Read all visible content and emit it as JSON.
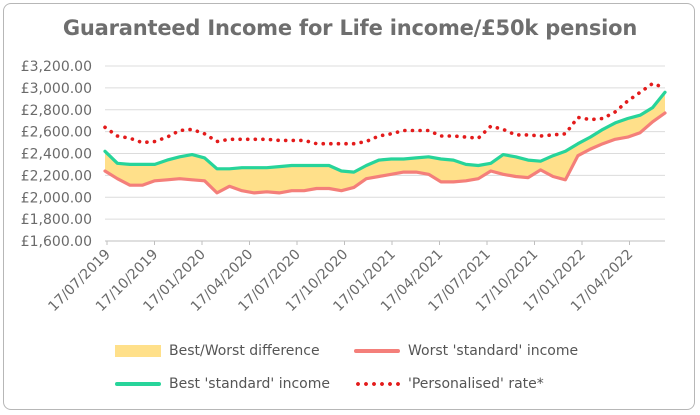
{
  "chart_data": {
    "type": "line",
    "title": "Guaranteed Income for Life income/£50k pension",
    "xlabel": "",
    "ylabel": "",
    "ylim": [
      1600,
      3200
    ],
    "yticks": [
      "£1,600.00",
      "£1,800.00",
      "£2,000.00",
      "£2,200.00",
      "£2,400.00",
      "£2,600.00",
      "£2,800.00",
      "£3,000.00",
      "£3,200.00"
    ],
    "xticks": [
      "17/07/2019",
      "17/10/2019",
      "17/01/2020",
      "17/04/2020",
      "17/07/2020",
      "17/10/2020",
      "17/01/2021",
      "17/04/2021",
      "17/07/2021",
      "17/10/2021",
      "17/01/2022",
      "17/04/2022"
    ],
    "x_index": [
      0,
      1,
      2,
      3,
      4,
      5,
      6,
      7,
      8,
      9,
      10,
      11,
      12,
      13,
      14,
      15,
      16,
      17,
      18,
      19,
      20,
      21,
      22,
      23,
      24,
      25,
      26,
      27,
      28,
      29,
      30,
      31,
      32,
      33,
      34,
      35,
      36,
      37,
      38,
      39,
      40,
      41,
      42,
      43,
      44,
      45
    ],
    "series": [
      {
        "name": "Best 'standard' income",
        "style": "solid",
        "color": "#27d49a",
        "values": [
          2420,
          2310,
          2300,
          2300,
          2300,
          2340,
          2370,
          2390,
          2360,
          2260,
          2260,
          2270,
          2270,
          2270,
          2280,
          2290,
          2290,
          2290,
          2290,
          2240,
          2230,
          2290,
          2340,
          2350,
          2350,
          2360,
          2370,
          2350,
          2340,
          2300,
          2290,
          2310,
          2390,
          2370,
          2340,
          2330,
          2380,
          2420,
          2490,
          2550,
          2620,
          2680,
          2720,
          2750,
          2820,
          2960
        ]
      },
      {
        "name": "Worst 'standard' income",
        "style": "solid",
        "color": "#f47f7a",
        "values": [
          2240,
          2170,
          2110,
          2110,
          2150,
          2160,
          2170,
          2160,
          2150,
          2040,
          2100,
          2060,
          2040,
          2050,
          2040,
          2060,
          2060,
          2080,
          2080,
          2060,
          2090,
          2170,
          2190,
          2210,
          2230,
          2230,
          2210,
          2140,
          2140,
          2150,
          2170,
          2240,
          2210,
          2190,
          2180,
          2250,
          2190,
          2160,
          2380,
          2440,
          2490,
          2530,
          2550,
          2590,
          2690,
          2770
        ]
      },
      {
        "name": "'Personalised' rate*",
        "style": "dotted",
        "color": "#e31b1b",
        "values": [
          2640,
          2560,
          2540,
          2500,
          2510,
          2550,
          2610,
          2620,
          2580,
          2510,
          2530,
          2530,
          2530,
          2530,
          2520,
          2520,
          2520,
          2490,
          2490,
          2490,
          2490,
          2510,
          2560,
          2580,
          2610,
          2610,
          2610,
          2560,
          2560,
          2550,
          2540,
          2650,
          2620,
          2570,
          2570,
          2560,
          2570,
          2580,
          2730,
          2710,
          2720,
          2780,
          2880,
          2960,
          3040,
          3000
        ]
      }
    ],
    "band": {
      "name": "Best/Worst difference",
      "color": "#ffe08a",
      "between": [
        "Best 'standard' income",
        "Worst 'standard' income"
      ]
    },
    "grid": "horizontal",
    "legend_position": "bottom"
  },
  "legend": {
    "items": [
      {
        "label": "Best/Worst difference"
      },
      {
        "label": "Worst 'standard' income"
      },
      {
        "label": "Best 'standard' income"
      },
      {
        "label": "'Personalised' rate*"
      }
    ]
  }
}
